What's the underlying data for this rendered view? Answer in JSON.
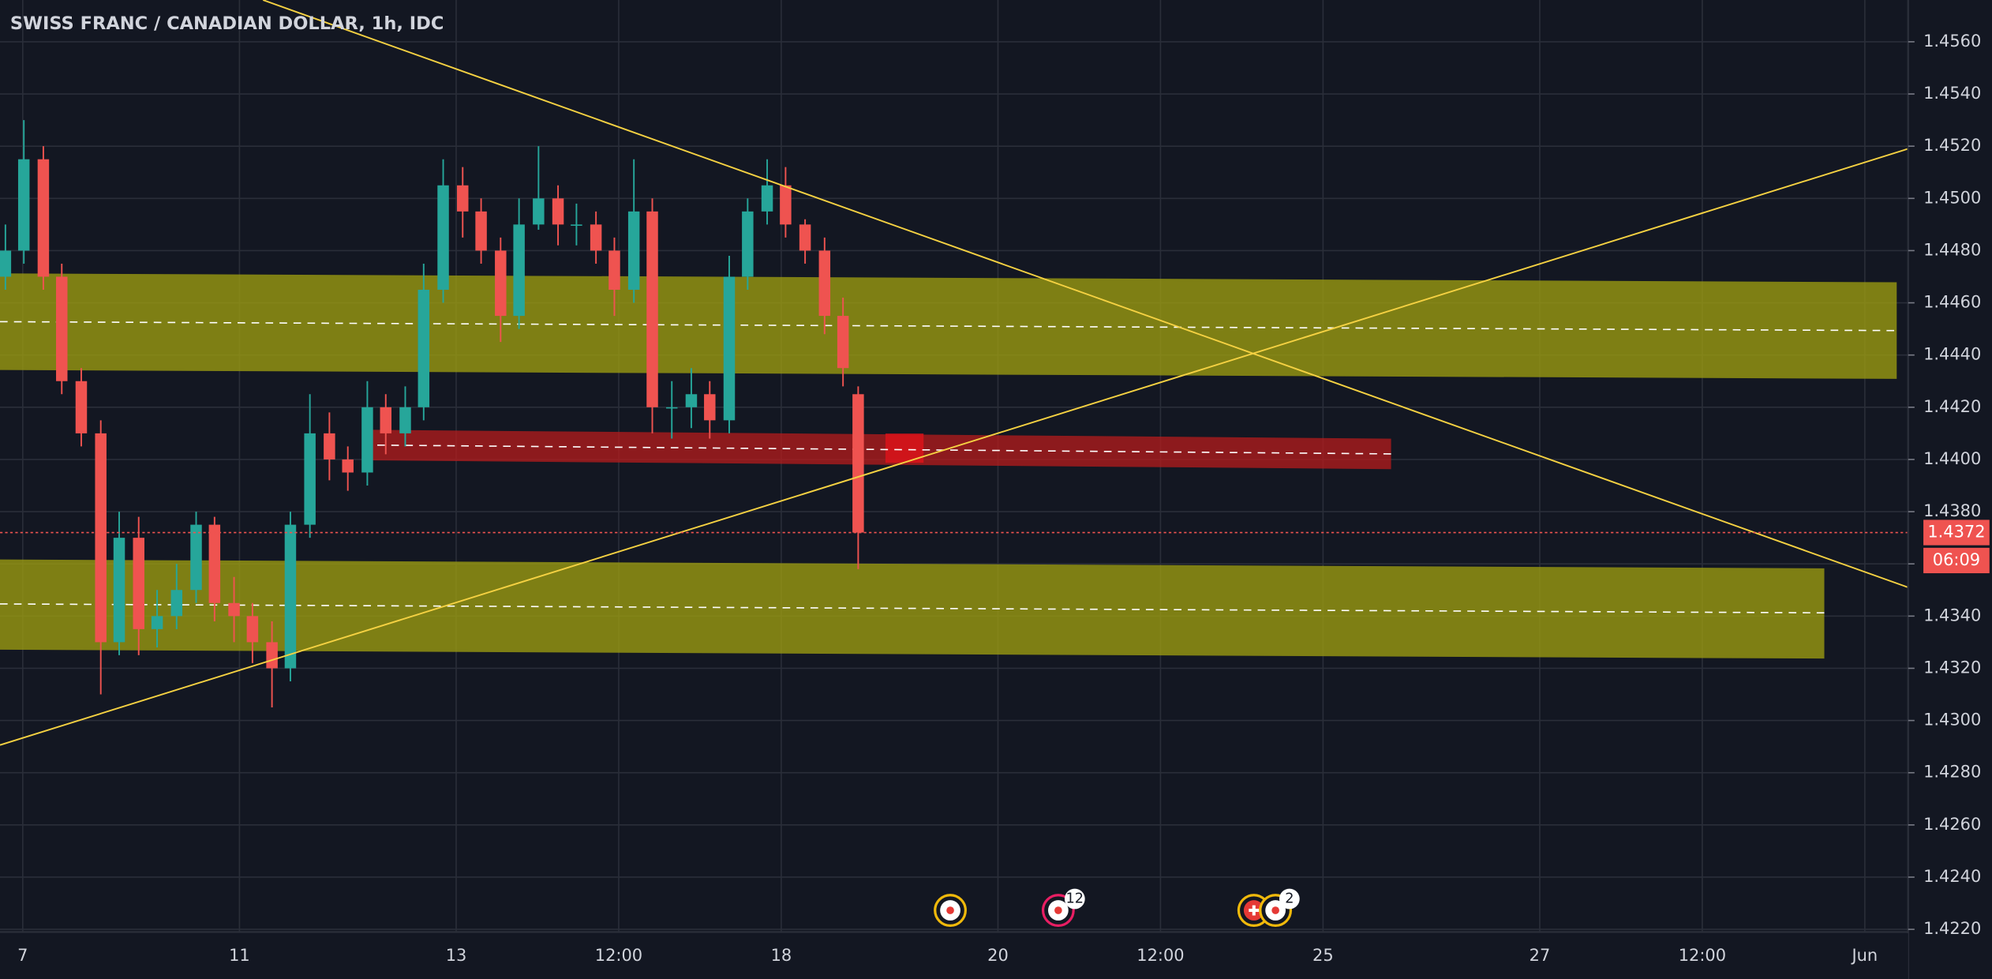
{
  "chart_data": {
    "type": "candlestick",
    "title": "SWISS FRANC / CANADIAN DOLLAR, 1h, IDC",
    "x": [
      -0.16,
      0.01,
      0.19,
      0.36,
      0.54,
      0.72,
      0.89,
      1.07,
      1.24,
      1.42,
      1.6,
      1.77,
      1.95,
      2.12,
      2.3,
      2.47,
      2.65,
      2.83,
      3.0,
      3.18,
      3.35,
      3.53,
      3.7,
      3.88,
      4.06,
      4.23,
      4.41,
      4.58,
      4.76,
      4.94,
      5.11,
      5.29,
      5.46,
      5.64,
      5.81,
      5.99,
      6.17,
      6.34,
      6.52,
      6.69,
      6.87,
      7.04,
      7.22,
      7.4,
      7.57,
      7.71
    ],
    "open": [
      1.447,
      1.448,
      1.4515,
      1.447,
      1.443,
      1.441,
      1.433,
      1.437,
      1.4335,
      1.434,
      1.435,
      1.4375,
      1.4345,
      1.434,
      1.433,
      1.432,
      1.4375,
      1.441,
      1.44,
      1.4395,
      1.442,
      1.441,
      1.442,
      1.4465,
      1.4505,
      1.4495,
      1.448,
      1.4455,
      1.449,
      1.45,
      1.449,
      1.449,
      1.448,
      1.4465,
      1.4495,
      1.442,
      1.442,
      1.4425,
      1.4415,
      1.447,
      1.4495,
      1.4505,
      1.449,
      1.448,
      1.4455,
      1.4425
    ],
    "high": [
      1.449,
      1.453,
      1.452,
      1.4475,
      1.4435,
      1.4415,
      1.438,
      1.4378,
      1.435,
      1.436,
      1.438,
      1.4378,
      1.4355,
      1.4345,
      1.4338,
      1.438,
      1.4425,
      1.4418,
      1.4405,
      1.443,
      1.4425,
      1.4428,
      1.4475,
      1.4515,
      1.4512,
      1.45,
      1.4485,
      1.45,
      1.452,
      1.4505,
      1.4498,
      1.4495,
      1.4485,
      1.4515,
      1.45,
      1.443,
      1.4435,
      1.443,
      1.4478,
      1.45,
      1.4515,
      1.4512,
      1.4492,
      1.4485,
      1.4462,
      1.4428
    ],
    "low": [
      1.4465,
      1.4475,
      1.4465,
      1.4425,
      1.4405,
      1.431,
      1.4325,
      1.4325,
      1.4328,
      1.4335,
      1.4345,
      1.4338,
      1.433,
      1.4322,
      1.4305,
      1.4315,
      1.437,
      1.4392,
      1.4388,
      1.439,
      1.4402,
      1.4405,
      1.4415,
      1.446,
      1.4485,
      1.4475,
      1.4445,
      1.445,
      1.4488,
      1.4482,
      1.4482,
      1.4475,
      1.4455,
      1.446,
      1.441,
      1.4408,
      1.4412,
      1.4408,
      1.441,
      1.4465,
      1.449,
      1.4485,
      1.4475,
      1.4448,
      1.4428,
      1.4358
    ],
    "close": [
      1.448,
      1.4515,
      1.447,
      1.443,
      1.441,
      1.433,
      1.437,
      1.4335,
      1.434,
      1.435,
      1.4375,
      1.4345,
      1.434,
      1.433,
      1.432,
      1.4375,
      1.441,
      1.44,
      1.4395,
      1.442,
      1.441,
      1.442,
      1.4465,
      1.4505,
      1.4495,
      1.448,
      1.4455,
      1.449,
      1.45,
      1.449,
      1.449,
      1.448,
      1.4465,
      1.4495,
      1.442,
      1.442,
      1.4425,
      1.4415,
      1.447,
      1.4495,
      1.4505,
      1.449,
      1.448,
      1.4455,
      1.4435,
      1.4372
    ],
    "up_color": "#26a69a",
    "down_color": "#ef5350",
    "xlim": [
      -0.21,
      17.4
    ],
    "xticks": [
      {
        "value": 0,
        "label": "7"
      },
      {
        "value": 2,
        "label": "11"
      },
      {
        "value": 4,
        "label": "13"
      },
      {
        "value": 5.5,
        "label": "12:00"
      },
      {
        "value": 7,
        "label": "18"
      },
      {
        "value": 9,
        "label": "20"
      },
      {
        "value": 10.5,
        "label": "12:00"
      },
      {
        "value": 12,
        "label": "25"
      },
      {
        "value": 14,
        "label": "27"
      },
      {
        "value": 15.5,
        "label": "12:00"
      },
      {
        "value": 17,
        "label": "Jun"
      }
    ],
    "ylim": [
      1.4219,
      1.4576
    ],
    "yticks": [
      {
        "value": 1.456,
        "label": "1.4560"
      },
      {
        "value": 1.454,
        "label": "1.4540"
      },
      {
        "value": 1.452,
        "label": "1.4520"
      },
      {
        "value": 1.45,
        "label": "1.4500"
      },
      {
        "value": 1.448,
        "label": "1.4480"
      },
      {
        "value": 1.446,
        "label": "1.4460"
      },
      {
        "value": 1.444,
        "label": "1.4440"
      },
      {
        "value": 1.442,
        "label": "1.4420"
      },
      {
        "value": 1.44,
        "label": "1.4400"
      },
      {
        "value": 1.438,
        "label": "1.4380"
      },
      {
        "value": 1.436,
        "label": "1.4360"
      },
      {
        "value": 1.434,
        "label": "1.4340"
      },
      {
        "value": 1.432,
        "label": "1.4320"
      },
      {
        "value": 1.43,
        "label": "1.4300"
      },
      {
        "value": 1.428,
        "label": "1.4280"
      },
      {
        "value": 1.426,
        "label": "1.4260"
      },
      {
        "value": 1.424,
        "label": "1.4240"
      },
      {
        "value": 1.422,
        "label": "1.4220"
      }
    ],
    "grid": true,
    "last_price": {
      "value": 1.4372,
      "label": "1.4372"
    },
    "countdown": "06:09",
    "event_badges": [
      "12",
      "2"
    ]
  }
}
